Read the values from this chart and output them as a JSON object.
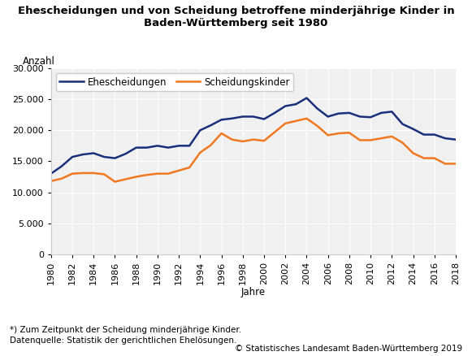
{
  "title_line1": "Ehescheidungen und von Scheidung betroffene minderjährige Kinder in",
  "title_line2": "Baden-Württemberg seit 1980",
  "ylabel": "Anzahl",
  "xlabel": "Jahre",
  "footnote1": "*) Zum Zeitpunkt der Scheidung minderjährige Kinder.",
  "footnote2": "Datenquelle: Statistik der gerichtlichen Ehelösungen.",
  "copyright": "© Statistisches Landesamt Baden-Württemberg 2019",
  "years": [
    1980,
    1981,
    1982,
    1983,
    1984,
    1985,
    1986,
    1987,
    1988,
    1989,
    1990,
    1991,
    1992,
    1993,
    1994,
    1995,
    1996,
    1997,
    1998,
    1999,
    2000,
    2001,
    2002,
    2003,
    2004,
    2005,
    2006,
    2007,
    2008,
    2009,
    2010,
    2011,
    2012,
    2013,
    2014,
    2015,
    2016,
    2017,
    2018
  ],
  "ehescheidungen": [
    13000,
    14200,
    15700,
    16100,
    16300,
    15700,
    15500,
    16200,
    17200,
    17200,
    17500,
    17200,
    17500,
    17500,
    20000,
    20800,
    21700,
    21900,
    22200,
    22200,
    21800,
    22800,
    23900,
    24200,
    25200,
    23500,
    22200,
    22700,
    22800,
    22200,
    22100,
    22800,
    23000,
    21000,
    20200,
    19300,
    19300,
    18700,
    18500
  ],
  "scheidungskinder": [
    11800,
    12200,
    13000,
    13100,
    13100,
    12900,
    11700,
    12100,
    12500,
    12800,
    13000,
    13000,
    13500,
    14000,
    16400,
    17600,
    19500,
    18500,
    18200,
    18500,
    18300,
    19700,
    21100,
    21500,
    21900,
    20700,
    19200,
    19500,
    19600,
    18400,
    18400,
    18700,
    19000,
    18000,
    16300,
    15500,
    15500,
    14600,
    14600
  ],
  "line1_color": "#1a2f7a",
  "line2_color": "#f07820",
  "legend1": "Ehescheidungen",
  "legend2": "Scheidungskinder",
  "ylim": [
    0,
    30000
  ],
  "yticks": [
    0,
    5000,
    10000,
    15000,
    20000,
    25000,
    30000
  ],
  "bg_color": "#ffffff",
  "plot_bg_color": "#f0f0f0",
  "grid_color": "#ffffff",
  "title_fontsize": 9.5,
  "label_fontsize": 8.5,
  "tick_fontsize": 8,
  "footnote_fontsize": 7.5,
  "copyright_fontsize": 7.5,
  "line_width": 1.8
}
